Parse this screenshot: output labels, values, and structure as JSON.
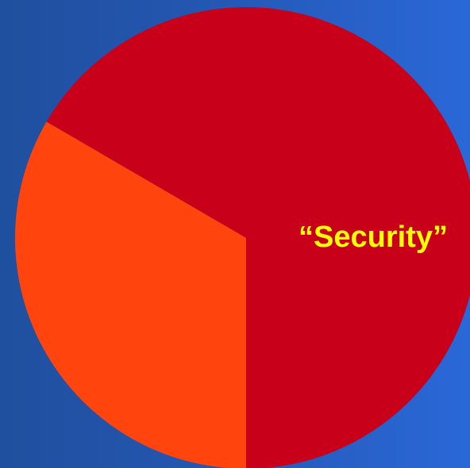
{
  "chart_data": {
    "type": "pie",
    "slices": [
      {
        "value": 66.6,
        "color": "#c8001a",
        "label": "“Security”"
      },
      {
        "value": 33.4,
        "color": "#ff440e",
        "label": ""
      }
    ],
    "label_color": "#ffff00",
    "background": [
      "#1f4f9e",
      "#2a68d8"
    ]
  }
}
